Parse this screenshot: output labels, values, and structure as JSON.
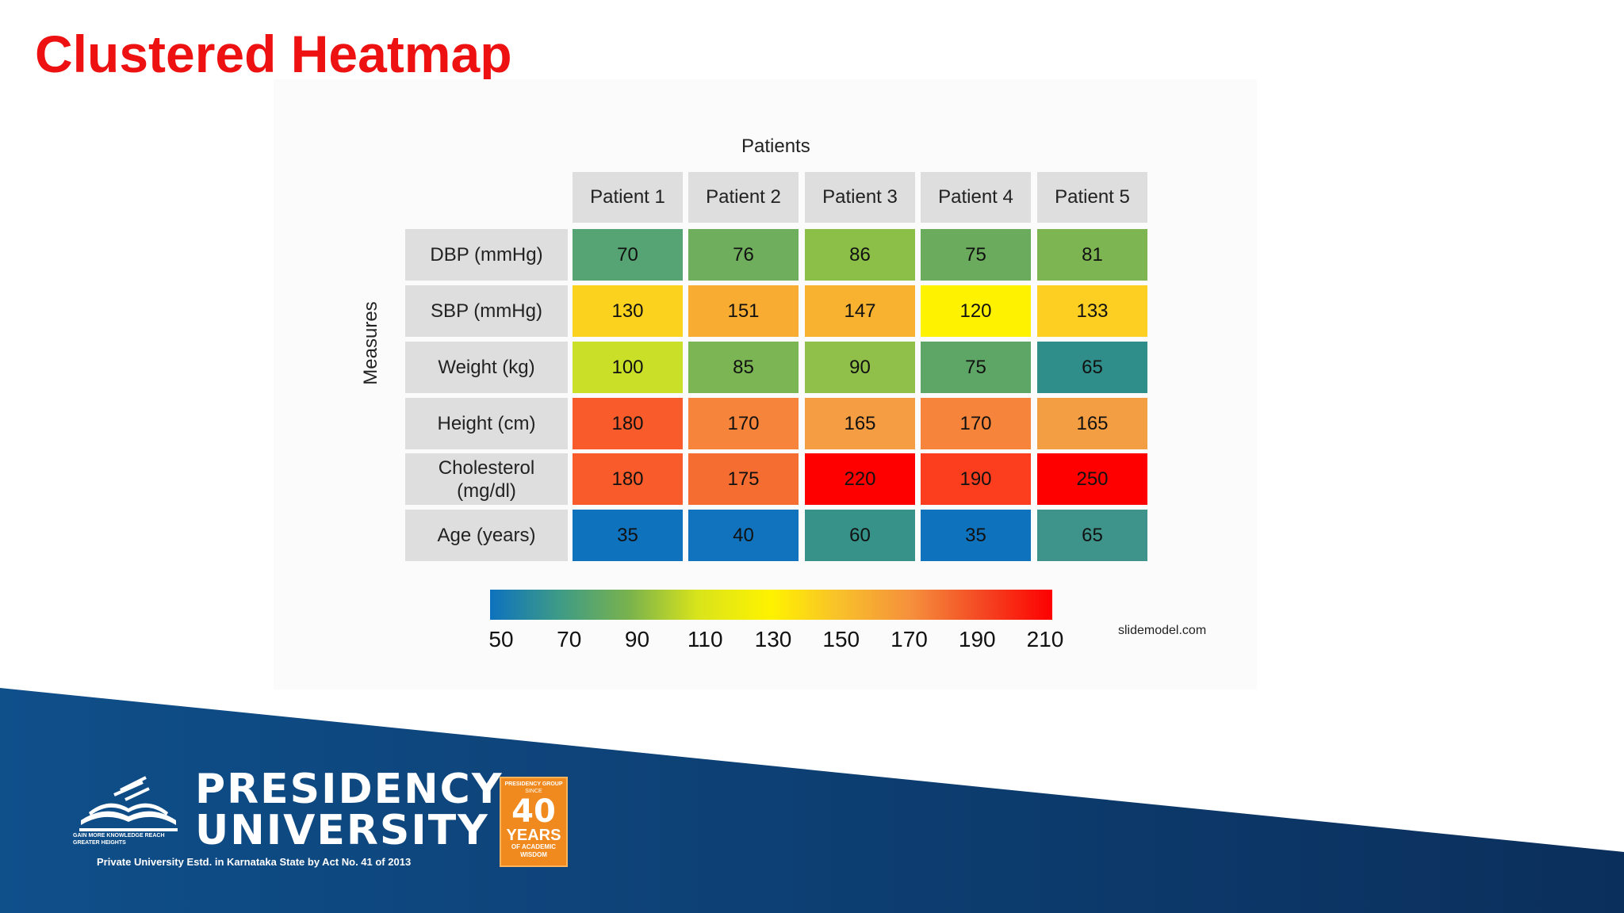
{
  "slide": {
    "title": "Clustered Heatmap"
  },
  "chart_data": {
    "type": "heatmap",
    "title": "",
    "xlabel": "Patients",
    "ylabel": "Measures",
    "columns": [
      "Patient 1",
      "Patient 2",
      "Patient 3",
      "Patient 4",
      "Patient 5"
    ],
    "rows": [
      "DBP (mmHg)",
      "SBP (mmHg)",
      "Weight (kg)",
      "Height (cm)",
      "Cholesterol\n(mg/dl)",
      "Age (years)"
    ],
    "values": [
      [
        70,
        76,
        86,
        75,
        81
      ],
      [
        130,
        151,
        147,
        120,
        133
      ],
      [
        100,
        85,
        90,
        75,
        65
      ],
      [
        180,
        170,
        165,
        170,
        165
      ],
      [
        180,
        175,
        220,
        190,
        250
      ],
      [
        35,
        40,
        60,
        35,
        65
      ]
    ],
    "cell_colors": [
      [
        "#56a473",
        "#6fae5c",
        "#8bbf47",
        "#6aab5e",
        "#7db552"
      ],
      [
        "#fbd31f",
        "#f8ad32",
        "#f8b22f",
        "#fff200",
        "#fccf22"
      ],
      [
        "#c9df28",
        "#7cb654",
        "#90c049",
        "#5ea665",
        "#2f8d8a"
      ],
      [
        "#f95c2a",
        "#f6843b",
        "#f59d42",
        "#f6853b",
        "#f49e44"
      ],
      [
        "#f95c2a",
        "#f66d31",
        "#ff0000",
        "#fc3e1e",
        "#ff0000"
      ],
      [
        "#0f72bd",
        "#1173bd",
        "#37928a",
        "#0f72bd",
        "#3e948a"
      ]
    ],
    "colorbar": {
      "ticks": [
        "50",
        "70",
        "90",
        "110",
        "130",
        "150",
        "170",
        "190",
        "210"
      ],
      "range": [
        50,
        210
      ],
      "colors": [
        "#0e72be",
        "#fff200",
        "#fd0000"
      ]
    },
    "credit": "slidemodel.com"
  },
  "footer": {
    "university_line1": "PRESIDENCY",
    "university_line2": "UNIVERSITY",
    "tagline": "GAIN MORE KNOWLEDGE REACH GREATER HEIGHTS",
    "act_text": "Private University Estd. in Karnataka State by Act No. 41 of 2013",
    "badge": {
      "top": "PRESIDENCY GROUP",
      "since": "SINCE",
      "number": "40",
      "years": "YEARS",
      "sub": "OF ACADEMIC WISDOM"
    },
    "colors": {
      "banner": "#0f4f8a",
      "banner_dark": "#0b2f5c",
      "badge": "#f08a1e"
    }
  }
}
